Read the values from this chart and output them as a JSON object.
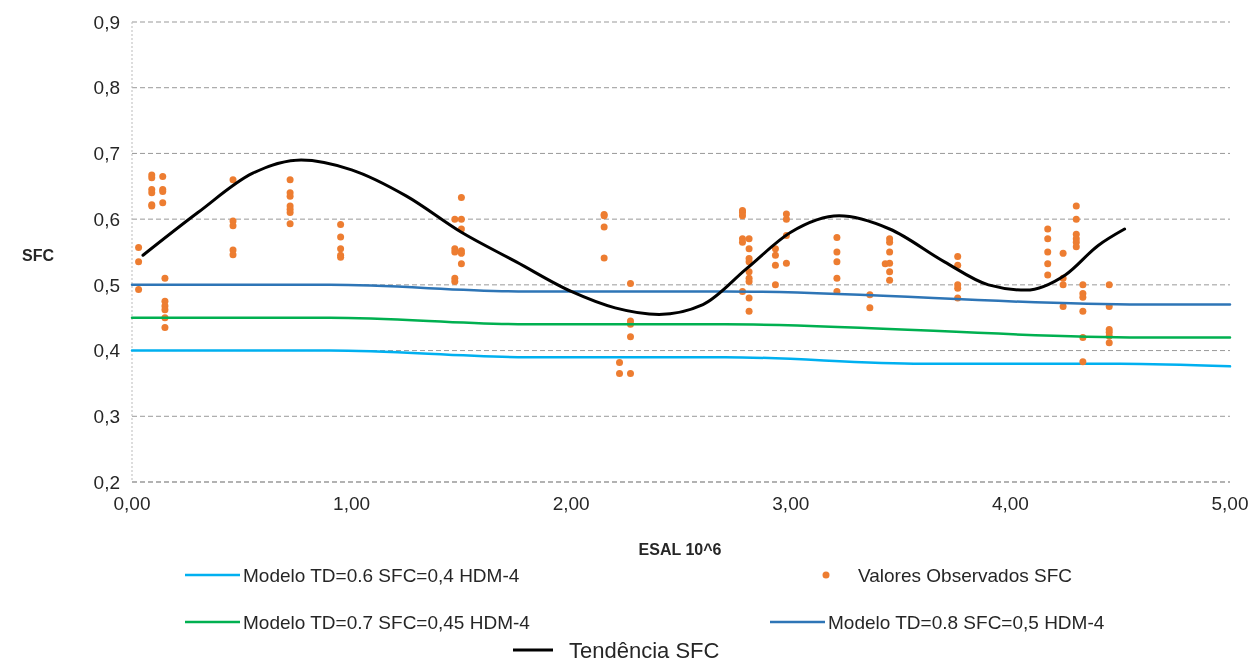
{
  "chart_data": {
    "type": "line",
    "xlabel": "ESAL 10^6",
    "ylabel": "SFC",
    "xlim": [
      0,
      5
    ],
    "xticks": [
      {
        "value": 0,
        "label": "0,00"
      },
      {
        "value": 1,
        "label": "1,00"
      },
      {
        "value": 2,
        "label": "2,00"
      },
      {
        "value": 3,
        "label": "3,00"
      },
      {
        "value": 4,
        "label": "4,00"
      },
      {
        "value": 5,
        "label": "5,00"
      }
    ],
    "ylim": [
      0.2,
      0.9
    ],
    "yticks": [
      {
        "value": 0.2,
        "label": "0,2"
      },
      {
        "value": 0.3,
        "label": "0,3"
      },
      {
        "value": 0.4,
        "label": "0,4"
      },
      {
        "value": 0.5,
        "label": "0,5"
      },
      {
        "value": 0.6,
        "label": "0,6"
      },
      {
        "value": 0.7,
        "label": "0,7"
      },
      {
        "value": 0.8,
        "label": "0,8"
      },
      {
        "value": 0.9,
        "label": "0,9"
      }
    ],
    "grid": "y",
    "legend": "bottom",
    "marker": "none",
    "line_style": "solid",
    "series": [
      {
        "name": "Modelo TD=0.6 SFC=0,4 HDM-4",
        "color": "#00b0f0",
        "x": [
          0,
          0.9,
          1.8,
          2.7,
          3.6,
          4.5,
          5
        ],
        "values": [
          0.4,
          0.4,
          0.39,
          0.39,
          0.38,
          0.38,
          0.376
        ]
      },
      {
        "name": "Valores Observados SFC",
        "type": "scatter",
        "marker": "circle",
        "color": "#ed7d31",
        "x": [
          0.03,
          0.03,
          0.03,
          0.09,
          0.09,
          0.09,
          0.09,
          0.09,
          0.09,
          0.14,
          0.14,
          0.14,
          0.14,
          0.15,
          0.15,
          0.15,
          0.15,
          0.15,
          0.15,
          0.46,
          0.46,
          0.46,
          0.46,
          0.46,
          0.72,
          0.72,
          0.72,
          0.72,
          0.72,
          0.72,
          0.72,
          0.95,
          0.95,
          0.95,
          0.95,
          0.95,
          1.47,
          1.47,
          1.47,
          1.47,
          1.47,
          1.5,
          1.5,
          1.5,
          1.5,
          1.5,
          1.5,
          2.15,
          2.15,
          2.15,
          2.15,
          2.22,
          2.22,
          2.27,
          2.27,
          2.27,
          2.27,
          2.27,
          2.78,
          2.78,
          2.78,
          2.78,
          2.78,
          2.78,
          2.81,
          2.81,
          2.81,
          2.81,
          2.81,
          2.81,
          2.81,
          2.81,
          2.81,
          2.93,
          2.93,
          2.93,
          2.93,
          2.98,
          2.98,
          2.98,
          2.98,
          3.21,
          3.21,
          3.21,
          3.21,
          3.21,
          3.36,
          3.36,
          3.43,
          3.45,
          3.45,
          3.45,
          3.45,
          3.45,
          3.45,
          3.76,
          3.76,
          3.76,
          3.76,
          3.76,
          4.17,
          4.17,
          4.17,
          4.17,
          4.17,
          4.24,
          4.24,
          4.24,
          4.24,
          4.3,
          4.3,
          4.3,
          4.3,
          4.3,
          4.3,
          4.33,
          4.33,
          4.33,
          4.33,
          4.33,
          4.33,
          4.45,
          4.45,
          4.45,
          4.45,
          4.45,
          4.45
        ],
        "values": [
          0.557,
          0.535,
          0.493,
          0.667,
          0.663,
          0.645,
          0.64,
          0.622,
          0.62,
          0.665,
          0.645,
          0.642,
          0.625,
          0.51,
          0.475,
          0.468,
          0.462,
          0.45,
          0.435,
          0.66,
          0.597,
          0.59,
          0.553,
          0.546,
          0.66,
          0.64,
          0.635,
          0.62,
          0.615,
          0.61,
          0.593,
          0.592,
          0.573,
          0.555,
          0.545,
          0.542,
          0.6,
          0.555,
          0.55,
          0.51,
          0.505,
          0.633,
          0.6,
          0.585,
          0.552,
          0.548,
          0.532,
          0.607,
          0.605,
          0.588,
          0.541,
          0.382,
          0.365,
          0.502,
          0.445,
          0.44,
          0.421,
          0.365,
          0.613,
          0.61,
          0.605,
          0.57,
          0.565,
          0.49,
          0.57,
          0.555,
          0.54,
          0.535,
          0.52,
          0.51,
          0.505,
          0.48,
          0.46,
          0.555,
          0.545,
          0.53,
          0.5,
          0.608,
          0.6,
          0.575,
          0.533,
          0.572,
          0.55,
          0.535,
          0.51,
          0.49,
          0.485,
          0.465,
          0.532,
          0.57,
          0.565,
          0.55,
          0.533,
          0.52,
          0.507,
          0.543,
          0.53,
          0.5,
          0.495,
          0.48,
          0.585,
          0.57,
          0.55,
          0.532,
          0.515,
          0.548,
          0.51,
          0.5,
          0.467,
          0.62,
          0.6,
          0.577,
          0.57,
          0.565,
          0.558,
          0.5,
          0.487,
          0.481,
          0.46,
          0.42,
          0.383,
          0.5,
          0.467,
          0.432,
          0.428,
          0.422,
          0.412
        ]
      },
      {
        "name": "Modelo TD=0.7 SFC=0,45 HDM-4",
        "color": "#00b050",
        "x": [
          0,
          0.9,
          1.8,
          2.7,
          4.6,
          5
        ],
        "values": [
          0.45,
          0.45,
          0.44,
          0.44,
          0.42,
          0.42
        ]
      },
      {
        "name": "Modelo TD=0.8 SFC=0,5 HDM-4",
        "color": "#2e75b6",
        "x": [
          0,
          0.9,
          1.8,
          2.7,
          4.6,
          5
        ],
        "values": [
          0.5,
          0.5,
          0.49,
          0.49,
          0.47,
          0.47
        ]
      },
      {
        "name": "Tendência SFC",
        "color": "#000000",
        "x": [
          0.05,
          0.3,
          0.55,
          0.77,
          1.0,
          1.25,
          1.5,
          1.75,
          2.0,
          2.2,
          2.4,
          2.6,
          2.8,
          3.0,
          3.22,
          3.45,
          3.7,
          3.9,
          4.07,
          4.25,
          4.4,
          4.52
        ],
        "values": [
          0.545,
          0.61,
          0.67,
          0.69,
          0.675,
          0.635,
          0.58,
          0.535,
          0.49,
          0.465,
          0.455,
          0.47,
          0.525,
          0.58,
          0.605,
          0.585,
          0.535,
          0.5,
          0.492,
          0.515,
          0.56,
          0.585
        ]
      }
    ]
  }
}
